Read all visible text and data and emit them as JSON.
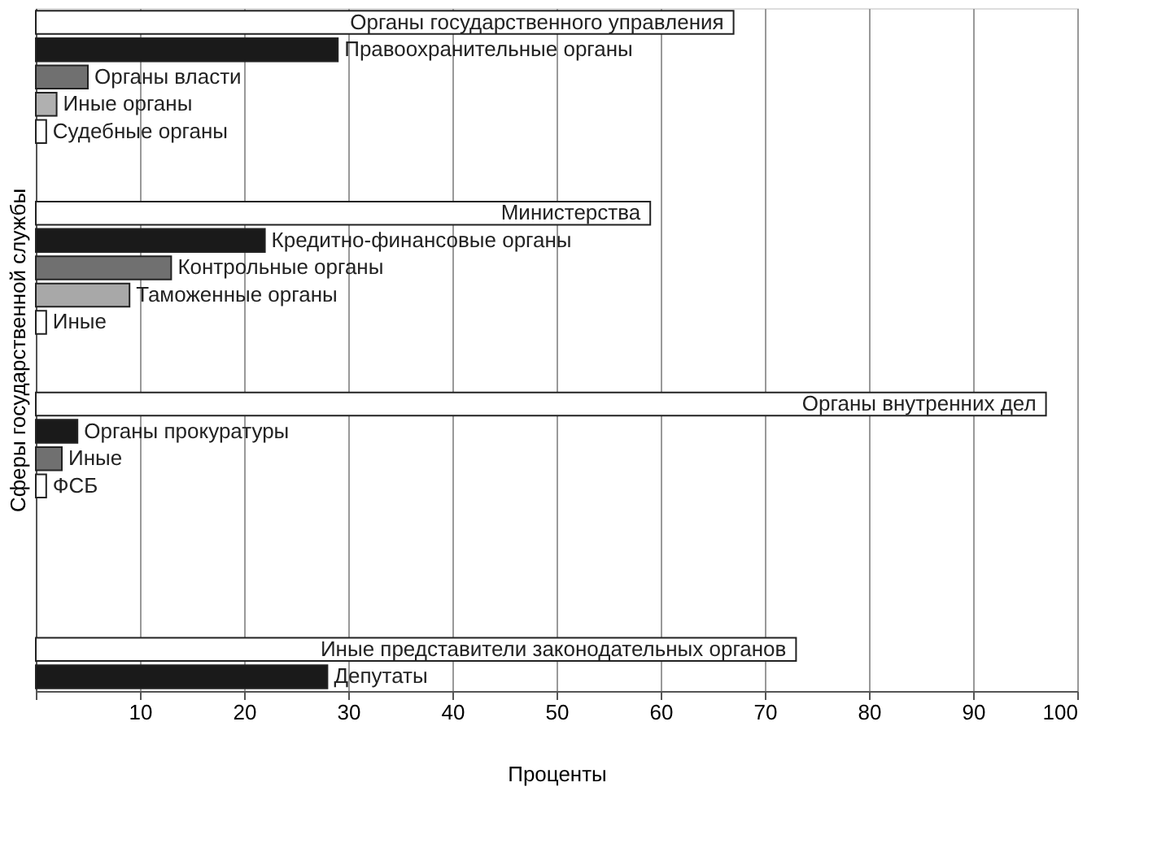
{
  "chart_data": {
    "type": "bar",
    "orientation": "horizontal",
    "xlabel": "Проценты",
    "ylabel": "Сферы государственной службы",
    "categories": [
      "Органы государственного управления",
      "Правоохранительные органы",
      "Органы власти",
      "Иные органы",
      "Судебные органы",
      null,
      null,
      "Министерства",
      "Кредитно-финансовые органы",
      "Контрольные органы",
      "Таможенные органы",
      "Иные",
      null,
      null,
      "Органы внутренних дел",
      "Органы прокуратуры",
      "Иные",
      "ФСБ",
      null,
      null,
      null,
      null,
      null,
      "Иные представители законодательных органов",
      "Депутаты"
    ],
    "values": [
      67,
      29,
      5,
      2,
      1,
      null,
      null,
      59,
      22,
      13,
      9,
      1,
      null,
      null,
      97,
      4,
      2.5,
      1,
      null,
      null,
      null,
      null,
      null,
      73,
      28
    ],
    "colors": [
      "#ffffff",
      "#1a1a1a",
      "#707070",
      "#b0b0b0",
      "#ffffff",
      null,
      null,
      "#ffffff",
      "#1a1a1a",
      "#707070",
      "#a8a8a8",
      "#ffffff",
      null,
      null,
      "#ffffff",
      "#1a1a1a",
      "#707070",
      "#ffffff",
      null,
      null,
      null,
      null,
      null,
      "#ffffff",
      "#1a1a1a"
    ],
    "xlim": [
      0,
      100
    ],
    "xticks": [
      {
        "value": 0,
        "label": null
      },
      10,
      20,
      30,
      40,
      50,
      60,
      70,
      80,
      90,
      100
    ],
    "grid": "x",
    "tick_labels": "x"
  }
}
